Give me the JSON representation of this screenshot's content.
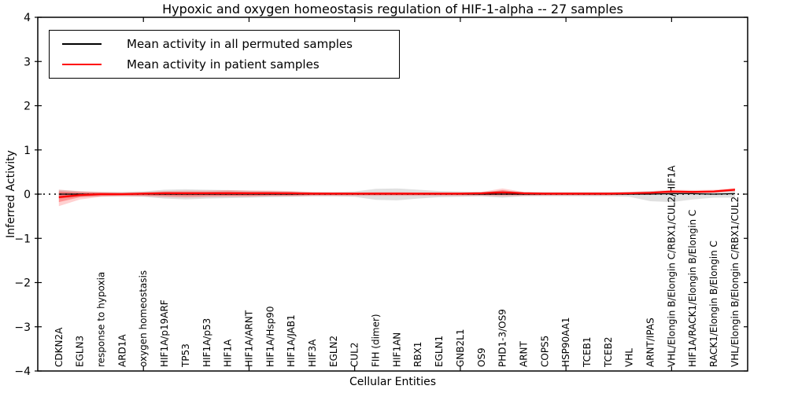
{
  "figure": {
    "title": "Hypoxic and oxygen homeostasis regulation of HIF-1-alpha -- 27 samples",
    "xlabel": "Cellular Entities",
    "ylabel": "Inferred Activity"
  },
  "legend": {
    "items": [
      {
        "label": "Mean activity in all permuted samples",
        "color": "#000000"
      },
      {
        "label": "Mean activity in patient samples",
        "color": "#ff0000"
      }
    ]
  },
  "chart_data": {
    "type": "line",
    "title": "Hypoxic and oxygen homeostasis regulation of HIF-1-alpha -- 27 samples",
    "xlabel": "Cellular Entities",
    "ylabel": "Inferred Activity",
    "ylim": [
      -4,
      4
    ],
    "xlim": [
      0,
      33.6
    ],
    "yticks": [
      -4,
      -3,
      -2,
      -1,
      0,
      1,
      2,
      3,
      4
    ],
    "ytick_labels": [
      "−4",
      "−3",
      "−2",
      "−1",
      "0",
      "1",
      "2",
      "3",
      "4"
    ],
    "xticks": [
      5,
      10,
      15,
      20,
      25,
      30
    ],
    "grid": false,
    "legend_position": "upper left",
    "zero_line": {
      "style": "dotted",
      "color": "#000000",
      "y": 0
    },
    "categories": [
      "CDKN2A",
      "EGLN3",
      "response to hypoxia",
      "ARD1A",
      "oxygen homeostasis",
      "HIF1A/p19ARF",
      "TP53",
      "HIF1A/p53",
      "HIF1A",
      "HIF1A/ARNT",
      "HIF1A/Hsp90",
      "HIF1A/JAB1",
      "HIF3A",
      "EGLN2",
      "CUL2",
      "FIH (dimer)",
      "HIF1AN",
      "RBX1",
      "EGLN1",
      "GNB2L1",
      "OS9",
      "PHD1-3/OS9",
      "ARNT",
      "COPS5",
      "HSP90AA1",
      "TCEB1",
      "TCEB2",
      "VHL",
      "ARNT/IPAS",
      "VHL/Elongin B/Elongin C/RBX1/CUL2/HIF1A",
      "HIF1A/RACK1/Elongin B/Elongin C",
      "RACK1/Elongin B/Elongin C",
      "VHL/Elongin B/Elongin C/RBX1/CUL2"
    ],
    "series": [
      {
        "name": "Mean activity in all permuted samples",
        "color": "#000000",
        "width": 1.3,
        "values": [
          0,
          0,
          0,
          0,
          0,
          0,
          0,
          0,
          0,
          0,
          0,
          0,
          0,
          0,
          0,
          0,
          0,
          0,
          0,
          0,
          0,
          0,
          0,
          0,
          0,
          0,
          0,
          0,
          0,
          0.01,
          0.01,
          0,
          0.01
        ]
      },
      {
        "name": "Mean activity in patient samples",
        "color": "#ff0000",
        "width": 2.2,
        "values": [
          -0.07,
          -0.02,
          0,
          0,
          0.01,
          0.02,
          0.02,
          0.02,
          0.02,
          0.02,
          0.02,
          0.02,
          0.01,
          0.01,
          0.01,
          0.01,
          0.01,
          0.01,
          0.01,
          0.01,
          0.02,
          0.04,
          0.02,
          0.01,
          0.01,
          0.01,
          0.01,
          0.02,
          0.03,
          0.06,
          0.05,
          0.06,
          0.1
        ]
      }
    ],
    "bands": [
      {
        "name": "permuted-samples-range",
        "color": "#000000",
        "opacity": 0.12,
        "upper": [
          0.1,
          0.06,
          0.05,
          0.05,
          0.06,
          0.1,
          0.11,
          0.1,
          0.09,
          0.08,
          0.07,
          0.06,
          0.05,
          0.05,
          0.06,
          0.12,
          0.13,
          0.1,
          0.07,
          0.06,
          0.05,
          0.08,
          0.05,
          0.05,
          0.05,
          0.05,
          0.05,
          0.05,
          0.07,
          0.08,
          0.08,
          0.06,
          0.08
        ],
        "lower": [
          -0.1,
          -0.06,
          -0.05,
          -0.05,
          -0.06,
          -0.1,
          -0.12,
          -0.1,
          -0.09,
          -0.08,
          -0.07,
          -0.06,
          -0.05,
          -0.05,
          -0.06,
          -0.13,
          -0.14,
          -0.1,
          -0.07,
          -0.06,
          -0.05,
          -0.08,
          -0.05,
          -0.05,
          -0.05,
          -0.05,
          -0.05,
          -0.06,
          -0.16,
          -0.18,
          -0.12,
          -0.08,
          -0.08
        ]
      },
      {
        "name": "patient-samples-range-outer",
        "color": "#ff0000",
        "opacity": 0.18,
        "upper": [
          0.1,
          0.07,
          0.05,
          0.04,
          0.05,
          0.07,
          0.08,
          0.08,
          0.09,
          0.08,
          0.08,
          0.07,
          0.05,
          0.04,
          0.04,
          0.05,
          0.05,
          0.04,
          0.04,
          0.04,
          0.05,
          0.13,
          0.05,
          0.04,
          0.04,
          0.04,
          0.04,
          0.05,
          0.07,
          0.1,
          0.09,
          0.1,
          0.14
        ],
        "lower": [
          -0.27,
          -0.12,
          -0.06,
          -0.05,
          -0.05,
          -0.07,
          -0.08,
          -0.07,
          -0.06,
          -0.06,
          -0.05,
          -0.05,
          -0.04,
          -0.04,
          -0.04,
          -0.04,
          -0.04,
          -0.04,
          -0.04,
          -0.04,
          -0.04,
          -0.05,
          -0.04,
          -0.03,
          -0.03,
          -0.03,
          -0.03,
          -0.02,
          0,
          0.01,
          0.01,
          0.03,
          0.06
        ]
      },
      {
        "name": "patient-samples-range-inner",
        "color": "#ff0000",
        "opacity": 0.3,
        "upper": [
          0.06,
          0.04,
          0.03,
          0.02,
          0.03,
          0.05,
          0.05,
          0.05,
          0.06,
          0.05,
          0.05,
          0.04,
          0.03,
          0.03,
          0.03,
          0.03,
          0.03,
          0.03,
          0.03,
          0.03,
          0.03,
          0.09,
          0.03,
          0.03,
          0.03,
          0.03,
          0.03,
          0.03,
          0.05,
          0.08,
          0.07,
          0.08,
          0.12
        ],
        "lower": [
          -0.18,
          -0.07,
          -0.04,
          -0.03,
          -0.03,
          -0.04,
          -0.05,
          -0.04,
          -0.04,
          -0.04,
          -0.03,
          -0.03,
          -0.02,
          -0.02,
          -0.02,
          -0.02,
          -0.02,
          -0.02,
          -0.02,
          -0.02,
          -0.02,
          -0.02,
          -0.02,
          -0.02,
          -0.02,
          -0.02,
          -0.02,
          -0.01,
          0.01,
          0.03,
          0.03,
          0.05,
          0.08
        ]
      }
    ]
  }
}
